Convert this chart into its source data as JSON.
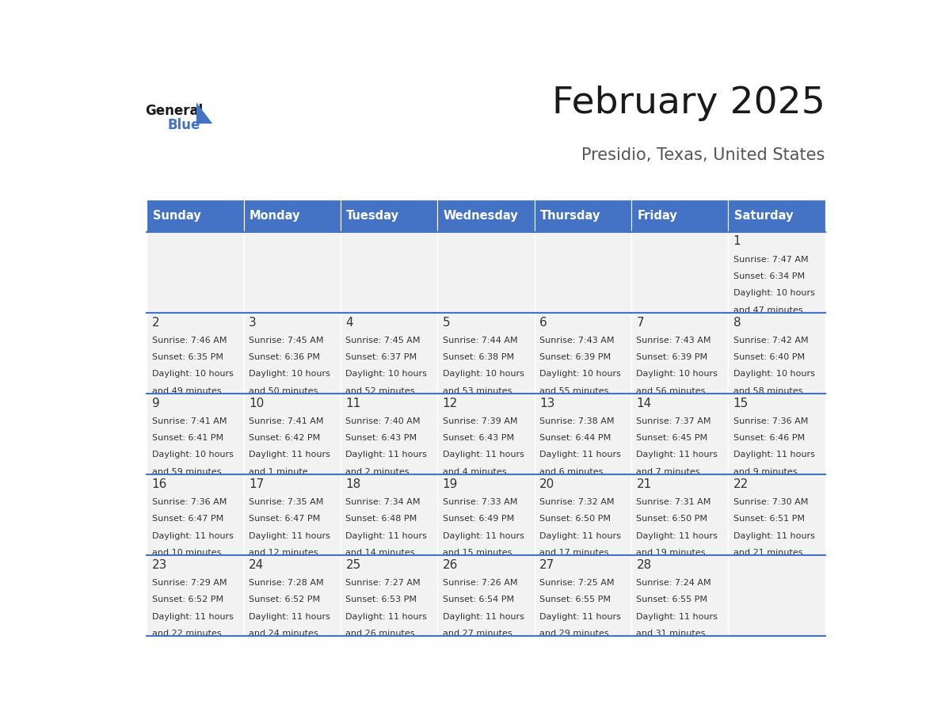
{
  "title": "February 2025",
  "subtitle": "Presidio, Texas, United States",
  "header_bg": "#4472C4",
  "header_text_color": "#FFFFFF",
  "cell_bg_light": "#F2F2F2",
  "border_color": "#4472C4",
  "text_color": "#333333",
  "days_of_week": [
    "Sunday",
    "Monday",
    "Tuesday",
    "Wednesday",
    "Thursday",
    "Friday",
    "Saturday"
  ],
  "calendar_data": [
    [
      null,
      null,
      null,
      null,
      null,
      null,
      {
        "day": 1,
        "sunrise": "7:47 AM",
        "sunset": "6:34 PM",
        "daylight_hours": 10,
        "daylight_minutes": 47
      }
    ],
    [
      {
        "day": 2,
        "sunrise": "7:46 AM",
        "sunset": "6:35 PM",
        "daylight_hours": 10,
        "daylight_minutes": 49
      },
      {
        "day": 3,
        "sunrise": "7:45 AM",
        "sunset": "6:36 PM",
        "daylight_hours": 10,
        "daylight_minutes": 50
      },
      {
        "day": 4,
        "sunrise": "7:45 AM",
        "sunset": "6:37 PM",
        "daylight_hours": 10,
        "daylight_minutes": 52
      },
      {
        "day": 5,
        "sunrise": "7:44 AM",
        "sunset": "6:38 PM",
        "daylight_hours": 10,
        "daylight_minutes": 53
      },
      {
        "day": 6,
        "sunrise": "7:43 AM",
        "sunset": "6:39 PM",
        "daylight_hours": 10,
        "daylight_minutes": 55
      },
      {
        "day": 7,
        "sunrise": "7:43 AM",
        "sunset": "6:39 PM",
        "daylight_hours": 10,
        "daylight_minutes": 56
      },
      {
        "day": 8,
        "sunrise": "7:42 AM",
        "sunset": "6:40 PM",
        "daylight_hours": 10,
        "daylight_minutes": 58
      }
    ],
    [
      {
        "day": 9,
        "sunrise": "7:41 AM",
        "sunset": "6:41 PM",
        "daylight_hours": 10,
        "daylight_minutes": 59
      },
      {
        "day": 10,
        "sunrise": "7:41 AM",
        "sunset": "6:42 PM",
        "daylight_hours": 11,
        "daylight_minutes": 1
      },
      {
        "day": 11,
        "sunrise": "7:40 AM",
        "sunset": "6:43 PM",
        "daylight_hours": 11,
        "daylight_minutes": 2
      },
      {
        "day": 12,
        "sunrise": "7:39 AM",
        "sunset": "6:43 PM",
        "daylight_hours": 11,
        "daylight_minutes": 4
      },
      {
        "day": 13,
        "sunrise": "7:38 AM",
        "sunset": "6:44 PM",
        "daylight_hours": 11,
        "daylight_minutes": 6
      },
      {
        "day": 14,
        "sunrise": "7:37 AM",
        "sunset": "6:45 PM",
        "daylight_hours": 11,
        "daylight_minutes": 7
      },
      {
        "day": 15,
        "sunrise": "7:36 AM",
        "sunset": "6:46 PM",
        "daylight_hours": 11,
        "daylight_minutes": 9
      }
    ],
    [
      {
        "day": 16,
        "sunrise": "7:36 AM",
        "sunset": "6:47 PM",
        "daylight_hours": 11,
        "daylight_minutes": 10
      },
      {
        "day": 17,
        "sunrise": "7:35 AM",
        "sunset": "6:47 PM",
        "daylight_hours": 11,
        "daylight_minutes": 12
      },
      {
        "day": 18,
        "sunrise": "7:34 AM",
        "sunset": "6:48 PM",
        "daylight_hours": 11,
        "daylight_minutes": 14
      },
      {
        "day": 19,
        "sunrise": "7:33 AM",
        "sunset": "6:49 PM",
        "daylight_hours": 11,
        "daylight_minutes": 15
      },
      {
        "day": 20,
        "sunrise": "7:32 AM",
        "sunset": "6:50 PM",
        "daylight_hours": 11,
        "daylight_minutes": 17
      },
      {
        "day": 21,
        "sunrise": "7:31 AM",
        "sunset": "6:50 PM",
        "daylight_hours": 11,
        "daylight_minutes": 19
      },
      {
        "day": 22,
        "sunrise": "7:30 AM",
        "sunset": "6:51 PM",
        "daylight_hours": 11,
        "daylight_minutes": 21
      }
    ],
    [
      {
        "day": 23,
        "sunrise": "7:29 AM",
        "sunset": "6:52 PM",
        "daylight_hours": 11,
        "daylight_minutes": 22
      },
      {
        "day": 24,
        "sunrise": "7:28 AM",
        "sunset": "6:52 PM",
        "daylight_hours": 11,
        "daylight_minutes": 24
      },
      {
        "day": 25,
        "sunrise": "7:27 AM",
        "sunset": "6:53 PM",
        "daylight_hours": 11,
        "daylight_minutes": 26
      },
      {
        "day": 26,
        "sunrise": "7:26 AM",
        "sunset": "6:54 PM",
        "daylight_hours": 11,
        "daylight_minutes": 27
      },
      {
        "day": 27,
        "sunrise": "7:25 AM",
        "sunset": "6:55 PM",
        "daylight_hours": 11,
        "daylight_minutes": 29
      },
      {
        "day": 28,
        "sunrise": "7:24 AM",
        "sunset": "6:55 PM",
        "daylight_hours": 11,
        "daylight_minutes": 31
      },
      null
    ]
  ],
  "logo_triangle_color": "#4472C4"
}
